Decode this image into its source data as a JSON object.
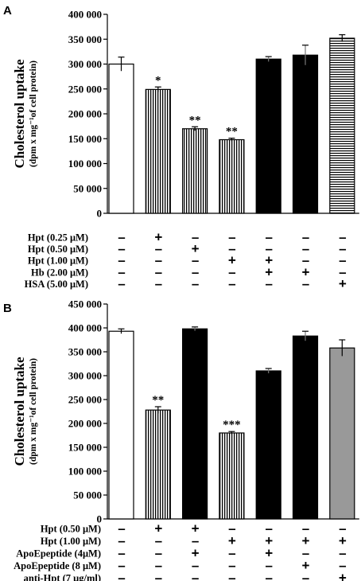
{
  "chart_data": [
    {
      "panel_letter": "A",
      "type": "bar",
      "ylabel_main": "Cholesterol uptake",
      "ylabel_sub": "(dpm x mg⁻¹of cell protein)",
      "ylim": [
        0,
        400000
      ],
      "y_ticks": [
        0,
        50000,
        100000,
        150000,
        200000,
        250000,
        300000,
        350000,
        400000
      ],
      "y_tick_labels": [
        "0",
        "50 000",
        "100 000",
        "150 000",
        "200 000",
        "250 000",
        "300 000",
        "350 000",
        "400 000"
      ],
      "grid": false,
      "bars": [
        {
          "value": 300000,
          "error": 14000,
          "fill": "white",
          "annotation": ""
        },
        {
          "value": 249000,
          "error": 5000,
          "fill": "vstripe",
          "annotation": "*"
        },
        {
          "value": 170000,
          "error": 4000,
          "fill": "vstripe",
          "annotation": "**"
        },
        {
          "value": 148000,
          "error": 3000,
          "fill": "vstripe",
          "annotation": "**"
        },
        {
          "value": 310000,
          "error": 5000,
          "fill": "black",
          "annotation": ""
        },
        {
          "value": 318000,
          "error": 20000,
          "fill": "black",
          "annotation": ""
        },
        {
          "value": 352000,
          "error": 7000,
          "fill": "hstripe",
          "annotation": ""
        }
      ],
      "conditions": [
        {
          "label": "Hpt (0.25 μM)",
          "signs": [
            "-",
            "+",
            "-",
            "-",
            "-",
            "-",
            "-"
          ]
        },
        {
          "label": "Hpt (0.50 μM)",
          "signs": [
            "-",
            "-",
            "+",
            "-",
            "-",
            "-",
            "-"
          ]
        },
        {
          "label": "Hpt (1.00 μM)",
          "signs": [
            "-",
            "-",
            "-",
            "+",
            "+",
            "-",
            "-"
          ]
        },
        {
          "label": "Hb (2.00 μM)",
          "signs": [
            "-",
            "-",
            "-",
            "-",
            "+",
            "+",
            "-"
          ]
        },
        {
          "label": "HSA (5.00 μM)",
          "signs": [
            "-",
            "-",
            "-",
            "-",
            "-",
            "-",
            "+"
          ]
        }
      ]
    },
    {
      "panel_letter": "B",
      "type": "bar",
      "ylabel_main": "Cholesterol uptake",
      "ylabel_sub": "(dpm x mg⁻¹of cell protein)",
      "ylim": [
        0,
        450000
      ],
      "y_ticks": [
        0,
        50000,
        100000,
        150000,
        200000,
        250000,
        300000,
        350000,
        400000,
        450000
      ],
      "y_tick_labels": [
        "0",
        "50 000",
        "100 000",
        "150 000",
        "200 000",
        "250 000",
        "300 000",
        "350 000",
        "400 000",
        "450 000"
      ],
      "grid": false,
      "bars": [
        {
          "value": 393000,
          "error": 5000,
          "fill": "white",
          "annotation": ""
        },
        {
          "value": 228000,
          "error": 7000,
          "fill": "vstripe",
          "annotation": "**"
        },
        {
          "value": 398000,
          "error": 4000,
          "fill": "black",
          "annotation": ""
        },
        {
          "value": 180000,
          "error": 3000,
          "fill": "vstripe",
          "annotation": "***"
        },
        {
          "value": 310000,
          "error": 5000,
          "fill": "black",
          "annotation": ""
        },
        {
          "value": 383000,
          "error": 10000,
          "fill": "black",
          "annotation": ""
        },
        {
          "value": 358000,
          "error": 17000,
          "fill": "gray",
          "annotation": ""
        }
      ],
      "conditions": [
        {
          "label": "Hpt (0.50 μM)",
          "signs": [
            "-",
            "+",
            "+",
            "-",
            "-",
            "-",
            "-"
          ]
        },
        {
          "label": "Hpt (1.00 μM)",
          "signs": [
            "-",
            "-",
            "-",
            "+",
            "+",
            "+",
            "+"
          ]
        },
        {
          "label": "ApoEpeptide (4μM)",
          "signs": [
            "-",
            "-",
            "+",
            "-",
            "+",
            "-",
            "-"
          ]
        },
        {
          "label": "ApoEpeptide (8 μM)",
          "signs": [
            "-",
            "-",
            "-",
            "-",
            "-",
            "+",
            "-"
          ]
        },
        {
          "label": "anti-Hpt (7 μg/ml)",
          "signs": [
            "-",
            "-",
            "-",
            "-",
            "-",
            "-",
            "+"
          ]
        }
      ]
    }
  ]
}
